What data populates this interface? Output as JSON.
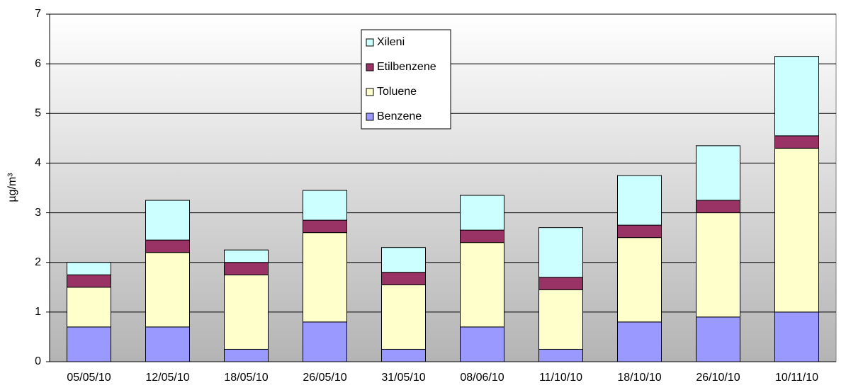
{
  "chart_data": {
    "type": "stacked-bar",
    "ylabel": "µg/m³",
    "categories": [
      "05/05/10",
      "12/05/10",
      "18/05/10",
      "26/05/10",
      "31/05/10",
      "08/06/10",
      "11/10/10",
      "18/10/10",
      "26/10/10",
      "10/11/10"
    ],
    "series": [
      {
        "name": "Benzene",
        "color": "#9999ff",
        "values": [
          0.7,
          0.7,
          0.25,
          0.8,
          0.25,
          0.7,
          0.25,
          0.8,
          0.9,
          1.0
        ]
      },
      {
        "name": "Toluene",
        "color": "#ffffcc",
        "values": [
          0.8,
          1.5,
          1.5,
          1.8,
          1.3,
          1.7,
          1.2,
          1.7,
          2.1,
          3.3
        ]
      },
      {
        "name": "Etilbenzene",
        "color": "#993366",
        "values": [
          0.25,
          0.25,
          0.25,
          0.25,
          0.25,
          0.25,
          0.25,
          0.25,
          0.25,
          0.25
        ]
      },
      {
        "name": "Xileni",
        "color": "#ccffff",
        "values": [
          0.25,
          0.8,
          0.25,
          0.6,
          0.5,
          0.7,
          1.0,
          1.0,
          1.1,
          1.6
        ]
      }
    ],
    "ylim": [
      0,
      7
    ],
    "yticks": [
      0,
      1,
      2,
      3,
      4,
      5,
      6,
      7
    ],
    "grid": true
  }
}
